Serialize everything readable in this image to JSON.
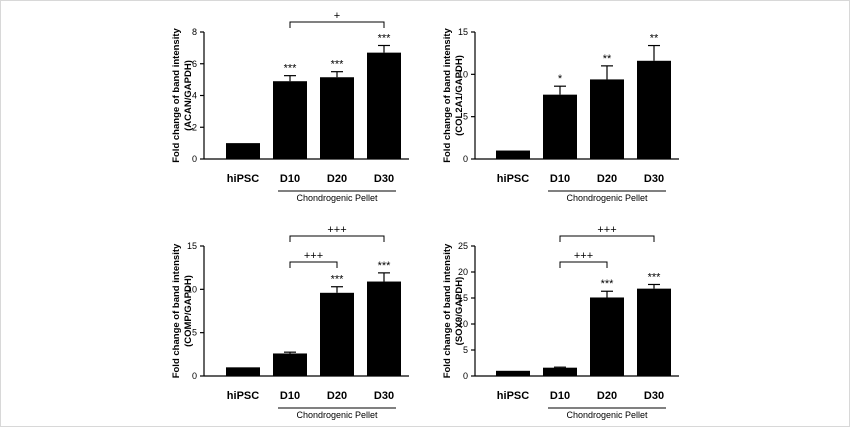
{
  "chart_data": [
    {
      "type": "bar",
      "ylabel": [
        "Fold change of band intensity",
        "(ACAN/GAPDH)"
      ],
      "categories": [
        "hiPSC",
        "D10",
        "D20",
        "D30"
      ],
      "values": [
        1.0,
        4.9,
        5.15,
        6.7
      ],
      "errors": [
        0.0,
        0.35,
        0.35,
        0.45
      ],
      "star_labels": [
        "",
        "***",
        "***",
        "***"
      ],
      "ylim": [
        0,
        8
      ],
      "yticks": [
        0,
        2,
        4,
        6,
        8
      ],
      "group_label": "Chondrogenic Pellet",
      "brackets": [
        {
          "from": "D10",
          "to": "D30",
          "label": "+"
        }
      ]
    },
    {
      "type": "bar",
      "ylabel": [
        "Fold change of band intensity",
        "(COL2A1/GAPDH)"
      ],
      "categories": [
        "hiPSC",
        "D10",
        "D20",
        "D30"
      ],
      "values": [
        1.0,
        7.6,
        9.4,
        11.6
      ],
      "errors": [
        0.0,
        1.0,
        1.6,
        1.8
      ],
      "star_labels": [
        "",
        "*",
        "**",
        "**"
      ],
      "ylim": [
        0,
        15
      ],
      "yticks": [
        0,
        5,
        10,
        15
      ],
      "group_label": "Chondrogenic Pellet",
      "brackets": []
    },
    {
      "type": "bar",
      "ylabel": [
        "Fold change of band intensity",
        "(COMP/GAPDH)"
      ],
      "categories": [
        "hiPSC",
        "D10",
        "D20",
        "D30"
      ],
      "values": [
        1.0,
        2.6,
        9.6,
        10.9
      ],
      "errors": [
        0.0,
        0.15,
        0.7,
        1.0
      ],
      "star_labels": [
        "",
        "",
        "***",
        "***"
      ],
      "ylim": [
        0,
        15
      ],
      "yticks": [
        0,
        5,
        10,
        15
      ],
      "group_label": "Chondrogenic Pellet",
      "brackets": [
        {
          "from": "D10",
          "to": "D20",
          "label": "+++"
        },
        {
          "from": "D10",
          "to": "D30",
          "label": "+++"
        }
      ]
    },
    {
      "type": "bar",
      "ylabel": [
        "Fold change of band intensity",
        "(SOX9/GAPDH)"
      ],
      "categories": [
        "hiPSC",
        "D10",
        "D20",
        "D30"
      ],
      "values": [
        1.0,
        1.6,
        15.1,
        16.8
      ],
      "errors": [
        0.0,
        0.1,
        1.2,
        0.8
      ],
      "star_labels": [
        "",
        "",
        "***",
        "***"
      ],
      "ylim": [
        0,
        25
      ],
      "yticks": [
        0,
        5,
        10,
        15,
        20,
        25
      ],
      "group_label": "Chondrogenic Pellet",
      "brackets": [
        {
          "from": "D10",
          "to": "D20",
          "label": "+++"
        },
        {
          "from": "D10",
          "to": "D30",
          "label": "+++"
        }
      ]
    }
  ]
}
